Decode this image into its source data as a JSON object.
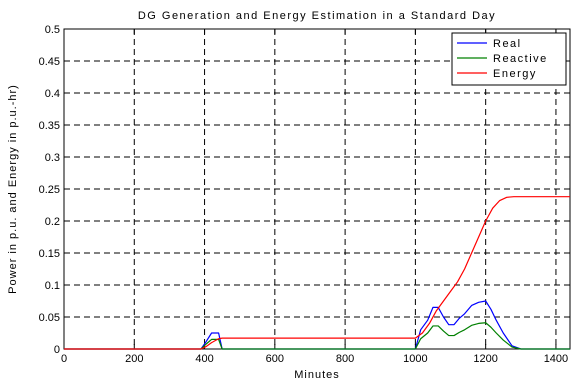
{
  "chart_data": {
    "type": "line",
    "title": "DG Generation and Energy Estimation in a Standard Day",
    "xlabel": "Minutes",
    "ylabel": "Power in p.u. and Energy in p.u.-hr)",
    "xlim": [
      0,
      1440
    ],
    "ylim": [
      0,
      0.5
    ],
    "xticks": [
      0,
      200,
      400,
      600,
      800,
      1000,
      1200,
      1400
    ],
    "yticks": [
      0,
      0.05,
      0.1,
      0.15,
      0.2,
      0.25,
      0.3,
      0.35,
      0.4,
      0.45,
      0.5
    ],
    "xtick_labels": [
      "0",
      "200",
      "400",
      "600",
      "800",
      "1000",
      "1200",
      "1400"
    ],
    "ytick_labels": [
      "0",
      "0.05",
      "0.1",
      "0.15",
      "0.2",
      "0.25",
      "0.3",
      "0.35",
      "0.4",
      "0.45",
      "0.5"
    ],
    "grid": true,
    "legend_position": "top-right",
    "series": [
      {
        "name": "Real",
        "color": "#0000ff",
        "x": [
          0,
          390,
          405,
          420,
          440,
          450,
          1000,
          1015,
          1035,
          1050,
          1065,
          1080,
          1095,
          1110,
          1125,
          1140,
          1160,
          1180,
          1200,
          1215,
          1230,
          1250,
          1275,
          1300,
          1440
        ],
        "y": [
          0,
          0,
          0.012,
          0.025,
          0.025,
          0,
          0,
          0.03,
          0.045,
          0.065,
          0.065,
          0.05,
          0.038,
          0.038,
          0.048,
          0.055,
          0.068,
          0.073,
          0.075,
          0.062,
          0.045,
          0.025,
          0.005,
          0,
          0
        ]
      },
      {
        "name": "Reactive",
        "color": "#008000",
        "x": [
          0,
          390,
          405,
          420,
          440,
          450,
          1000,
          1015,
          1035,
          1050,
          1065,
          1080,
          1095,
          1110,
          1125,
          1140,
          1160,
          1180,
          1200,
          1215,
          1230,
          1250,
          1275,
          1300,
          1440
        ],
        "y": [
          0,
          0,
          0.008,
          0.015,
          0.015,
          0,
          0,
          0.016,
          0.025,
          0.036,
          0.036,
          0.028,
          0.021,
          0.021,
          0.026,
          0.03,
          0.037,
          0.04,
          0.041,
          0.034,
          0.025,
          0.014,
          0.003,
          0,
          0
        ]
      },
      {
        "name": "Energy",
        "color": "#ff0000",
        "x": [
          0,
          390,
          405,
          420,
          440,
          450,
          1000,
          1020,
          1040,
          1060,
          1080,
          1100,
          1120,
          1140,
          1160,
          1180,
          1200,
          1220,
          1240,
          1260,
          1280,
          1300,
          1440
        ],
        "y": [
          0,
          0,
          0.004,
          0.01,
          0.016,
          0.017,
          0.017,
          0.025,
          0.04,
          0.06,
          0.075,
          0.09,
          0.105,
          0.125,
          0.15,
          0.175,
          0.2,
          0.22,
          0.232,
          0.237,
          0.238,
          0.238,
          0.238
        ]
      }
    ]
  }
}
